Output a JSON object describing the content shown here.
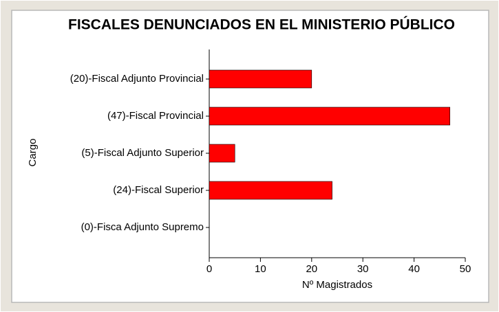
{
  "chart_data": {
    "type": "bar",
    "orientation": "horizontal",
    "title": "FISCALES DENUNCIADOS EN EL MINISTERIO PÚBLICO",
    "x_label": "Nº Magistrados",
    "y_label": "Cargo",
    "categories": [
      "(20)-Fiscal Adjunto Provincial",
      "(47)-Fiscal Provincial",
      "(5)-Fiscal Adjunto Superior",
      "(24)-Fiscal Superior",
      "(0)-Fisca Adjunto Supremo"
    ],
    "values": [
      20,
      47,
      5,
      24,
      0
    ],
    "color": "#ff0000",
    "xlim": [
      0,
      50
    ],
    "xticks": [
      0,
      10,
      20,
      30,
      40,
      50
    ],
    "grid": false
  }
}
